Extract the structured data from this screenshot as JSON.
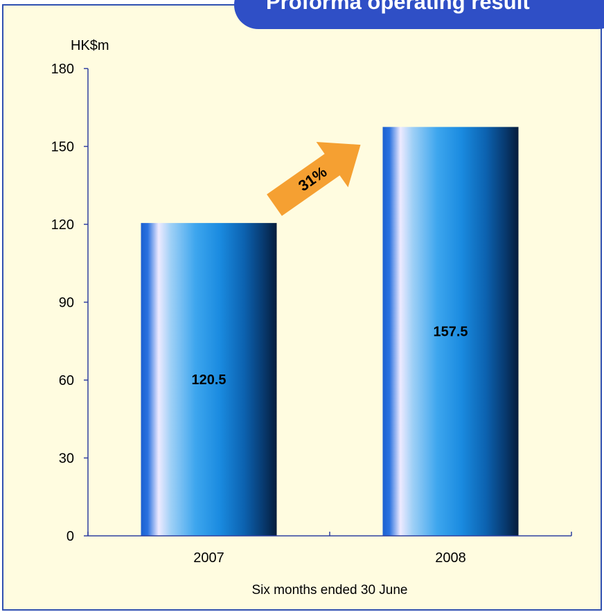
{
  "title": "Proforma operating result",
  "colors": {
    "background": "#fffce0",
    "border": "#2f4fb0",
    "title_bg": "#2f4fc6",
    "axis": "#2f3fa0",
    "arrow": "#f5a032"
  },
  "annotation": {
    "text": "31%",
    "shape": "arrow-up-right"
  },
  "chart_data": {
    "type": "bar",
    "title": "Proforma operating result",
    "ylabel": "HK$m",
    "xlabel": "Six months ended 30 June",
    "categories": [
      "2007",
      "2008"
    ],
    "values": [
      120.5,
      157.5
    ],
    "data_labels": [
      "120.5",
      "157.5"
    ],
    "yticks": [
      0,
      30,
      60,
      90,
      120,
      150,
      180
    ],
    "ylim": [
      0,
      180
    ],
    "grid": false,
    "legend": "none"
  }
}
